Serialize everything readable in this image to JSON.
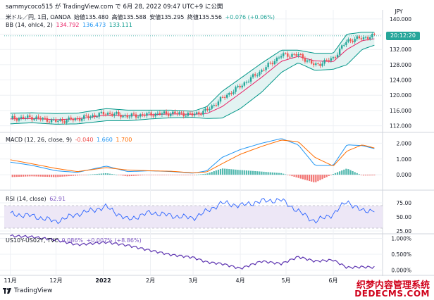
{
  "header": {
    "published_by": "sammycoco515 が TradingView.com で 6月 28, 2022 09:47 UTC+9 に公開"
  },
  "legends": {
    "main": {
      "symbol": "米ドル／円, 1日, OANDA",
      "open": "始値135.480",
      "high": "高値135.588",
      "low": "安値135.295",
      "close": "終値135.556",
      "change": "+0.076 (+0.06%)"
    },
    "bb": {
      "name": "BB (14, ohlc4, 2)",
      "basis": "134.792",
      "upper": "136.473",
      "lower": "133.111"
    },
    "macd": {
      "name": "MACD (12, 26, close, 9)",
      "hist": "-0.040",
      "macd": "1.660",
      "signal": "1.700"
    },
    "rsi": {
      "name": "RSI (14, close)",
      "value": "62.91"
    },
    "spread": {
      "name": "US10Y-US02Y, TVC",
      "value": "0.086%",
      "change": "+0.007% (+8.86%)"
    }
  },
  "price_axis": {
    "currency": "JPY",
    "main_ticks": [
      "140.000",
      "136.000",
      "132.000",
      "128.000",
      "124.000",
      "120.000",
      "116.000",
      "112.000"
    ],
    "countdown": "20:12:20",
    "macd_ticks": [
      "2.000",
      "1.000",
      "0.000"
    ],
    "rsi_ticks": [
      "75.00",
      "50.00",
      "25.00"
    ],
    "spread_ticks": [
      "1.000%",
      "0.500%",
      "0.000%"
    ]
  },
  "time_axis": {
    "labels": [
      "11月",
      "12月",
      "2022",
      "2月",
      "3月",
      "4月",
      "5月",
      "6月"
    ]
  },
  "footer": {
    "brand": "TradingView"
  },
  "watermark": {
    "line1": "织梦内容管理系统",
    "line2": "DEDECMS.COM"
  },
  "colors": {
    "up": "#26a69a",
    "down": "#ef5350",
    "bb_basis": "#e91e63",
    "bb_band": "#009688",
    "bb_fill": "#e0f2f1",
    "macd_line": "#2196f3",
    "signal_line": "#ff6d00",
    "hist_pos": "#26a69a",
    "hist_neg": "#ef5350",
    "rsi_line": "#2962ff",
    "rsi_fill": "#ede7f6",
    "spread_line": "#5e35b1",
    "grid": "#eef0f4"
  },
  "chart_data": [
    {
      "type": "line",
      "name": "USDJPY daily close (candlesticks) with Bollinger Bands",
      "x": [
        "2021-11-01",
        "2021-11-15",
        "2021-12-01",
        "2021-12-15",
        "2022-01-03",
        "2022-01-17",
        "2022-02-01",
        "2022-02-15",
        "2022-03-01",
        "2022-03-10",
        "2022-03-20",
        "2022-04-01",
        "2022-04-15",
        "2022-04-28",
        "2022-05-09",
        "2022-05-20",
        "2022-06-01",
        "2022-06-10",
        "2022-06-20",
        "2022-06-28"
      ],
      "series": [
        {
          "name": "close",
          "values": [
            113.9,
            114.2,
            113.2,
            113.8,
            115.3,
            114.5,
            115.0,
            115.3,
            114.9,
            116.0,
            119.2,
            122.4,
            126.5,
            130.5,
            130.6,
            127.8,
            129.7,
            134.3,
            135.0,
            135.56
          ]
        },
        {
          "name": "upper",
          "values": [
            115.3,
            115.4,
            115.2,
            115.3,
            116.5,
            116.1,
            116.1,
            116.1,
            115.8,
            117.0,
            121.0,
            124.4,
            128.4,
            131.8,
            131.8,
            131.0,
            131.0,
            136.0,
            136.5,
            136.473
          ]
        },
        {
          "name": "basis",
          "values": [
            113.8,
            113.9,
            113.6,
            113.8,
            114.8,
            114.6,
            114.9,
            115.1,
            115.0,
            115.2,
            117.0,
            120.5,
            124.7,
            128.9,
            130.2,
            129.0,
            128.8,
            132.0,
            134.3,
            134.792
          ]
        },
        {
          "name": "lower",
          "values": [
            112.5,
            112.8,
            112.4,
            112.5,
            113.3,
            113.3,
            113.8,
            114.1,
            114.2,
            113.9,
            114.0,
            116.5,
            120.8,
            126.0,
            128.5,
            126.5,
            126.8,
            128.0,
            132.0,
            133.111
          ]
        }
      ],
      "ylim": [
        111,
        142
      ]
    },
    {
      "type": "bar",
      "name": "MACD (12, 26, close, 9)",
      "x": [
        "2021-11-01",
        "2021-11-15",
        "2021-12-01",
        "2021-12-15",
        "2022-01-03",
        "2022-01-17",
        "2022-02-01",
        "2022-02-15",
        "2022-03-01",
        "2022-03-10",
        "2022-03-20",
        "2022-04-01",
        "2022-04-15",
        "2022-04-28",
        "2022-05-09",
        "2022-05-20",
        "2022-06-01",
        "2022-06-10",
        "2022-06-20",
        "2022-06-28"
      ],
      "series": [
        {
          "name": "macd",
          "values": [
            0.8,
            0.6,
            0.25,
            0.15,
            0.55,
            0.2,
            0.25,
            0.2,
            0.1,
            0.25,
            1.1,
            1.6,
            2.0,
            2.3,
            1.9,
            0.6,
            0.6,
            1.9,
            1.85,
            1.66
          ]
        },
        {
          "name": "signal",
          "values": [
            0.95,
            0.7,
            0.4,
            0.2,
            0.45,
            0.3,
            0.25,
            0.22,
            0.12,
            0.18,
            0.7,
            1.3,
            1.8,
            2.2,
            2.1,
            1.1,
            0.55,
            1.5,
            1.9,
            1.7
          ]
        },
        {
          "name": "histogram",
          "values": [
            -0.15,
            -0.1,
            -0.15,
            -0.05,
            0.1,
            -0.1,
            0.0,
            -0.02,
            -0.02,
            0.07,
            0.4,
            0.3,
            0.2,
            0.1,
            -0.2,
            -0.5,
            0.05,
            0.4,
            -0.05,
            -0.04
          ]
        }
      ],
      "ylim": [
        -0.8,
        2.6
      ]
    },
    {
      "type": "line",
      "name": "RSI (14, close)",
      "x": [
        "2021-11-01",
        "2021-11-15",
        "2021-12-01",
        "2021-12-15",
        "2022-01-03",
        "2022-01-17",
        "2022-02-01",
        "2022-02-15",
        "2022-03-01",
        "2022-03-10",
        "2022-03-20",
        "2022-04-01",
        "2022-04-15",
        "2022-04-28",
        "2022-05-09",
        "2022-05-20",
        "2022-06-01",
        "2022-06-10",
        "2022-06-20",
        "2022-06-28"
      ],
      "series": [
        {
          "name": "rsi",
          "values": [
            55,
            52,
            42,
            55,
            68,
            45,
            58,
            52,
            48,
            60,
            75,
            70,
            78,
            80,
            60,
            42,
            55,
            78,
            60,
            62.91
          ]
        }
      ],
      "ylim": [
        20,
        95
      ]
    },
    {
      "type": "line",
      "name": "US10Y-US02Y, TVC",
      "x": [
        "2021-11-01",
        "2021-11-15",
        "2021-12-01",
        "2021-12-15",
        "2022-01-03",
        "2022-01-17",
        "2022-02-01",
        "2022-02-15",
        "2022-03-01",
        "2022-03-10",
        "2022-03-20",
        "2022-04-01",
        "2022-04-15",
        "2022-04-28",
        "2022-05-09",
        "2022-05-20",
        "2022-06-01",
        "2022-06-10",
        "2022-06-20",
        "2022-06-28"
      ],
      "series": [
        {
          "name": "spread",
          "values": [
            1.08,
            1.05,
            0.95,
            0.8,
            0.88,
            0.78,
            0.62,
            0.48,
            0.4,
            0.25,
            0.2,
            0.05,
            0.28,
            0.2,
            0.42,
            0.28,
            0.32,
            0.08,
            0.1,
            0.086
          ]
        }
      ],
      "ylim": [
        -0.1,
        1.1
      ]
    }
  ]
}
